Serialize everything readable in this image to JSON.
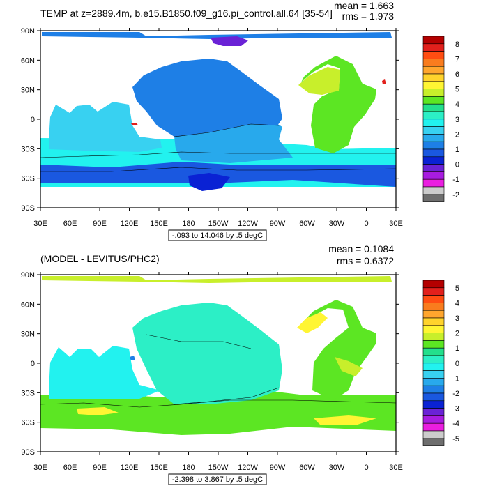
{
  "panels": [
    {
      "title": "TEMP at z=2889.4m, b.e15.B1850.f09_g16.pi_control.all.64 [35-54]",
      "stats": {
        "mean": "mean = 1.663",
        "rms": "rms = 1.973"
      },
      "range_label": "-.093 to 14.046 by .5 degC",
      "colorbar": {
        "labels": [
          "8",
          "7",
          "6",
          "5",
          "4",
          "3",
          "2",
          "1",
          "0",
          "-1",
          "-2"
        ],
        "colors": [
          "#b40000",
          "#e2201c",
          "#ff4d12",
          "#f97c1e",
          "#ffa62e",
          "#ffd32c",
          "#fff533",
          "#c8ef2b",
          "#5ce623",
          "#23df8c",
          "#2cefc6",
          "#22f2ef",
          "#38d1f1",
          "#28a9ec",
          "#1e7fe6",
          "#1a58e0",
          "#0a22d4",
          "#6a22d6",
          "#a81ce0",
          "#ea1ee0",
          "#cccccc",
          "#6e6e6e"
        ]
      }
    },
    {
      "title": "(MODEL - LEVITUS/PHC2)",
      "stats": {
        "mean": "mean = 0.1084",
        "rms": "rms = 0.6372"
      },
      "range_label": "-2.398 to 3.867 by .5 degC",
      "colorbar": {
        "labels": [
          "5",
          "4",
          "3",
          "2",
          "1",
          "0",
          "-1",
          "-2",
          "-3",
          "-4",
          "-5"
        ],
        "colors": [
          "#b40000",
          "#e2201c",
          "#ff4d12",
          "#f97c1e",
          "#ffa62e",
          "#ffd32c",
          "#fff533",
          "#c8ef2b",
          "#5ce623",
          "#23df8c",
          "#2cefc6",
          "#22f2ef",
          "#38d1f1",
          "#28a9ec",
          "#1e7fe6",
          "#1a58e0",
          "#0a22d4",
          "#6a22d6",
          "#a81ce0",
          "#ea1ee0",
          "#cccccc",
          "#6e6e6e"
        ]
      }
    }
  ],
  "axes": {
    "x_ticks": [
      "30E",
      "60E",
      "90E",
      "120E",
      "150E",
      "180",
      "150W",
      "120W",
      "90W",
      "60W",
      "30W",
      "0",
      "30E"
    ],
    "y_ticks": [
      "90N",
      "60N",
      "30N",
      "0",
      "30S",
      "60S",
      "90S"
    ]
  },
  "map_colors": {
    "land": "#ffffff",
    "panel1": {
      "pacific_north": "#1e7fe6",
      "pacific_south": "#28a9ec",
      "indian": "#38d1f1",
      "atlantic": "#5ce623",
      "atlantic_north": "#c8ef2b",
      "southern_band": "#22f2ef",
      "antarctic": "#1a58e0",
      "deep_antarctic": "#0a22d4",
      "arctic": "#1e7fe6",
      "arctic_purple": "#6a22d6",
      "med": "#e2201c"
    },
    "panel2": {
      "pacific": "#2cefc6",
      "indian": "#22f2ef",
      "atlantic": "#5ce623",
      "southern": "#5ce623",
      "yellow": "#fff533",
      "lime": "#c8ef2b",
      "blue_spot": "#1e7fe6",
      "arctic": "#c8ef2b"
    }
  }
}
